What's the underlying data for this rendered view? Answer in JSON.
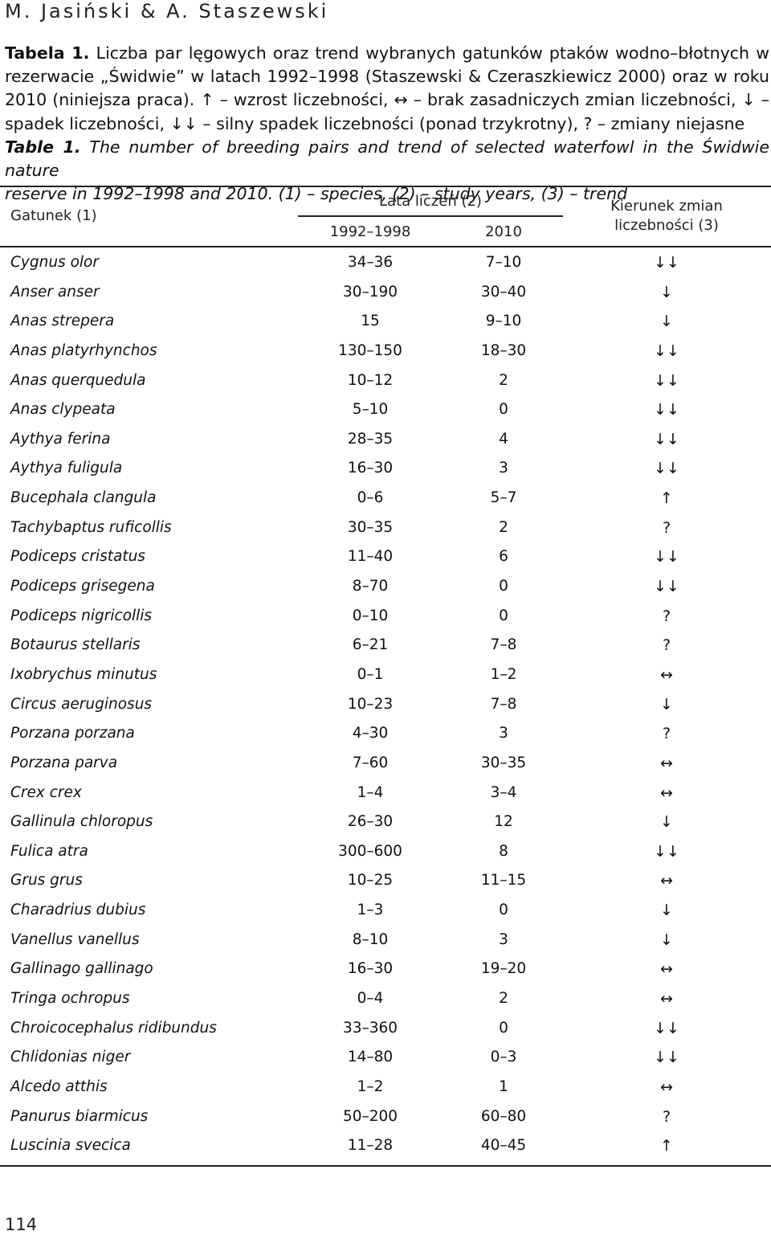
{
  "running_head": "M. Jasiński & A. Staszewski",
  "caption": {
    "pl_label": "Tabela 1.",
    "pl_lines": [
      " Liczba par lęgowych oraz trend wybranych gatunków ptaków wodno–błotnych w",
      "rezerwacie „Świdwie” w latach 1992–1998 (Staszewski & Czeraszkiewicz 2000) oraz w roku",
      "2010 (niniejsza praca). ↑ – wzrost liczebności, ↔ – brak zasadniczych zmian liczebności, ↓ –",
      "spadek liczebności, ↓↓ – silny spadek liczebności (ponad trzykrotny), ? – zmiany niejasne"
    ],
    "en_label": "Table 1.",
    "en_lines": [
      " The number of breeding pairs and trend of selected waterfowl in the Świdwie nature",
      "reserve in 1992–1998 and 2010. (1) – species, (2) – study years, (3) – trend"
    ]
  },
  "table": {
    "headers": {
      "species": "Gatunek (1)",
      "years_group": "Lata liczeń (2)",
      "years_1": "1992–1998",
      "years_2": "2010",
      "trend_line1": "Kierunek zmian",
      "trend_line2": "liczebności (3)"
    },
    "rows": [
      {
        "species": "Cygnus olor",
        "y1": "34–36",
        "y2": "7–10",
        "trend": "↓↓"
      },
      {
        "species": "Anser anser",
        "y1": "30–190",
        "y2": "30–40",
        "trend": "↓"
      },
      {
        "species": "Anas strepera",
        "y1": "15",
        "y2": "9–10",
        "trend": "↓"
      },
      {
        "species": "Anas platyrhynchos",
        "y1": "130–150",
        "y2": "18–30",
        "trend": "↓↓"
      },
      {
        "species": "Anas querquedula",
        "y1": "10–12",
        "y2": "2",
        "trend": "↓↓"
      },
      {
        "species": "Anas clypeata",
        "y1": "5–10",
        "y2": "0",
        "trend": "↓↓"
      },
      {
        "species": "Aythya ferina",
        "y1": "28–35",
        "y2": "4",
        "trend": "↓↓"
      },
      {
        "species": "Aythya fuligula",
        "y1": "16–30",
        "y2": "3",
        "trend": "↓↓"
      },
      {
        "species": "Bucephala clangula",
        "y1": "0–6",
        "y2": "5–7",
        "trend": "↑"
      },
      {
        "species": "Tachybaptus ruficollis",
        "y1": "30–35",
        "y2": "2",
        "trend": "?"
      },
      {
        "species": "Podiceps cristatus",
        "y1": "11–40",
        "y2": "6",
        "trend": "↓↓"
      },
      {
        "species": "Podiceps grisegena",
        "y1": "8–70",
        "y2": "0",
        "trend": "↓↓"
      },
      {
        "species": "Podiceps nigricollis",
        "y1": "0–10",
        "y2": "0",
        "trend": "?"
      },
      {
        "species": "Botaurus stellaris",
        "y1": "6–21",
        "y2": "7–8",
        "trend": "?"
      },
      {
        "species": "Ixobrychus minutus",
        "y1": "0–1",
        "y2": "1–2",
        "trend": "↔"
      },
      {
        "species": "Circus aeruginosus",
        "y1": "10–23",
        "y2": "7–8",
        "trend": "↓"
      },
      {
        "species": "Porzana porzana",
        "y1": "4–30",
        "y2": "3",
        "trend": "?"
      },
      {
        "species": "Porzana parva",
        "y1": "7–60",
        "y2": "30–35",
        "trend": "↔"
      },
      {
        "species": "Crex crex",
        "y1": "1–4",
        "y2": "3–4",
        "trend": "↔"
      },
      {
        "species": "Gallinula chloropus",
        "y1": "26–30",
        "y2": "12",
        "trend": "↓"
      },
      {
        "species": "Fulica atra",
        "y1": "300–600",
        "y2": "8",
        "trend": "↓↓"
      },
      {
        "species": "Grus grus",
        "y1": "10–25",
        "y2": "11–15",
        "trend": "↔"
      },
      {
        "species": "Charadrius dubius",
        "y1": "1–3",
        "y2": "0",
        "trend": "↓"
      },
      {
        "species": "Vanellus vanellus",
        "y1": "8–10",
        "y2": "3",
        "trend": "↓"
      },
      {
        "species": "Gallinago gallinago",
        "y1": "16–30",
        "y2": "19–20",
        "trend": "↔"
      },
      {
        "species": "Tringa ochropus",
        "y1": "0–4",
        "y2": "2",
        "trend": "↔"
      },
      {
        "species": "Chroicocephalus ridibundus",
        "y1": "33–360",
        "y2": "0",
        "trend": "↓↓"
      },
      {
        "species": "Chlidonias niger",
        "y1": "14–80",
        "y2": "0–3",
        "trend": "↓↓"
      },
      {
        "species": "Alcedo atthis",
        "y1": "1–2",
        "y2": "1",
        "trend": "↔"
      },
      {
        "species": "Panurus biarmicus",
        "y1": "50–200",
        "y2": "60–80",
        "trend": "?"
      },
      {
        "species": "Luscinia svecica",
        "y1": "11–28",
        "y2": "40–45",
        "trend": "↑"
      }
    ]
  },
  "page_number": "114"
}
